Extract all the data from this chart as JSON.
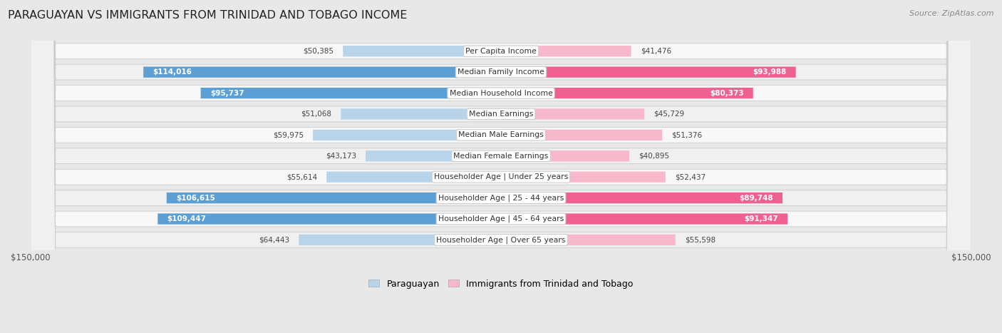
{
  "title": "PARAGUAYAN VS IMMIGRANTS FROM TRINIDAD AND TOBAGO INCOME",
  "source": "Source: ZipAtlas.com",
  "categories": [
    "Per Capita Income",
    "Median Family Income",
    "Median Household Income",
    "Median Earnings",
    "Median Male Earnings",
    "Median Female Earnings",
    "Householder Age | Under 25 years",
    "Householder Age | 25 - 44 years",
    "Householder Age | 45 - 64 years",
    "Householder Age | Over 65 years"
  ],
  "paraguayan_values": [
    50385,
    114016,
    95737,
    51068,
    59975,
    43173,
    55614,
    106615,
    109447,
    64443
  ],
  "trinidad_values": [
    41476,
    93988,
    80373,
    45729,
    51376,
    40895,
    52437,
    89748,
    91347,
    55598
  ],
  "paraguayan_labels": [
    "$50,385",
    "$114,016",
    "$95,737",
    "$51,068",
    "$59,975",
    "$43,173",
    "$55,614",
    "$106,615",
    "$109,447",
    "$64,443"
  ],
  "trinidad_labels": [
    "$41,476",
    "$93,988",
    "$80,373",
    "$45,729",
    "$51,376",
    "$40,895",
    "$52,437",
    "$89,748",
    "$91,347",
    "$55,598"
  ],
  "paraguayan_color_light": "#b8d4ea",
  "paraguayan_color_dark": "#5b9fd4",
  "trinidad_color_light": "#f8b8cc",
  "trinidad_color_dark": "#f06090",
  "para_threshold": 90000,
  "trin_threshold": 80000,
  "max_value": 150000,
  "legend_paraguayan": "Paraguayan",
  "legend_trinidad": "Immigrants from Trinidad and Tobago",
  "fig_bg": "#e8e8e8",
  "row_bg_odd": "#f5f5f5",
  "row_bg_even": "#ebebeb"
}
